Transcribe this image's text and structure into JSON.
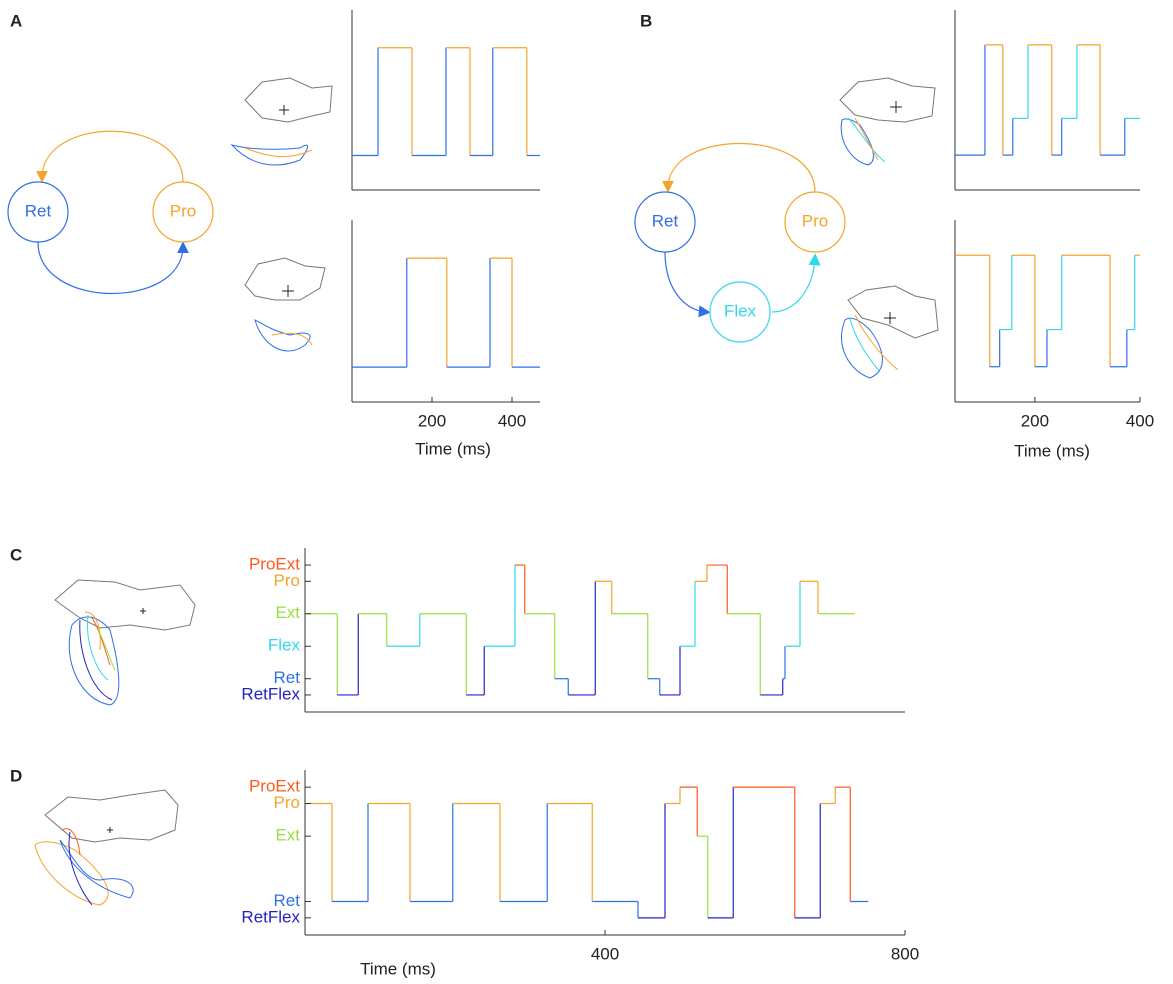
{
  "panels": [
    {
      "label": "A",
      "nodes": [
        {
          "label": "Ret",
          "color": "#2f6fe8"
        },
        {
          "label": "Pro",
          "color": "#f5a42a"
        }
      ],
      "level_colors": {
        "0": "#2f6fe8",
        "1": "#f5a42a"
      },
      "xlim": [
        0,
        470
      ],
      "ylim": [
        -0.32,
        1.35
      ],
      "xticks": [
        200,
        400
      ],
      "xlabel": "Time (ms)",
      "plots": [
        {
          "x": [
            0,
            65,
            150,
            235,
            295,
            352,
            437,
            470
          ],
          "values": [
            0,
            1,
            0,
            1,
            0,
            1,
            0,
            0
          ]
        },
        {
          "x": [
            0,
            137,
            237,
            345,
            400,
            470
          ],
          "values": [
            0,
            1,
            0,
            1,
            0,
            0
          ]
        }
      ]
    },
    {
      "label": "B",
      "nodes": [
        {
          "label": "Ret",
          "color": "#2f6fe8"
        },
        {
          "label": "Pro",
          "color": "#f5a42a"
        },
        {
          "label": "Flex",
          "color": "#30d8ee"
        }
      ],
      "level_colors": {
        "0": "#2f6fe8",
        "1": "#30d8ee",
        "3": "#f5a42a"
      },
      "xlim": [
        48,
        400
      ],
      "ylim": [
        -0.95,
        3.95
      ],
      "xticks": [
        200,
        400
      ],
      "xlabel": "Time (ms)",
      "plots": [
        {
          "x": [
            48,
            105,
            139,
            158,
            187,
            232,
            251,
            280,
            324,
            371,
            400
          ],
          "values": [
            0,
            3,
            0,
            1,
            3,
            0,
            1,
            3,
            0,
            1,
            1
          ]
        },
        {
          "x": [
            48,
            114,
            133,
            156,
            200,
            223,
            251,
            343,
            375,
            390,
            400
          ],
          "values": [
            3,
            0,
            1,
            3,
            0,
            1,
            3,
            0,
            1,
            3,
            3
          ]
        }
      ]
    },
    {
      "label": "C",
      "level_colors": {
        "0": "#2323c8",
        "1": "#2f6fe8",
        "3": "#30d8ee",
        "5": "#98e040",
        "7": "#f5a42a",
        "8": "#ff5a1a"
      },
      "ylabels": [
        {
          "value": 8,
          "label": "ProExt"
        },
        {
          "value": 7,
          "label": "Pro"
        },
        {
          "value": 5,
          "label": "Ext"
        },
        {
          "value": 3,
          "label": "Flex"
        },
        {
          "value": 1,
          "label": "Ret"
        },
        {
          "value": 0,
          "label": "RetFlex"
        }
      ],
      "xlim": [
        0,
        800
      ],
      "ylim": [
        -1.05,
        9.05
      ],
      "plots": [
        {
          "x": [
            0,
            43,
            71,
            109,
            153,
            215,
            239,
            280,
            293,
            333,
            351,
            387,
            409,
            457,
            473,
            500,
            520,
            536,
            563,
            607,
            637,
            640,
            660,
            684,
            733
          ],
          "values": [
            5,
            0,
            5,
            3,
            5,
            0,
            3,
            8,
            5,
            1,
            0,
            7,
            5,
            1,
            0,
            3,
            7,
            8,
            5,
            0,
            1,
            3,
            7,
            5,
            5
          ]
        }
      ]
    },
    {
      "label": "D",
      "level_colors": {
        "0": "#2323c8",
        "1": "#2f6fe8",
        "5": "#98e040",
        "7": "#f5a42a",
        "8": "#ff5a1a"
      },
      "ylabels": [
        {
          "value": 8,
          "label": "ProExt"
        },
        {
          "value": 7,
          "label": "Pro"
        },
        {
          "value": 5,
          "label": "Ext"
        },
        {
          "value": 1,
          "label": "Ret"
        },
        {
          "value": 0,
          "label": "RetFlex"
        }
      ],
      "xlim": [
        0,
        800
      ],
      "ylim": [
        -1.05,
        9.05
      ],
      "xticks": [
        400,
        800
      ],
      "xlabel": "Time (ms)",
      "plots": [
        {
          "x": [
            0,
            36,
            84,
            140,
            197,
            260,
            323,
            383,
            444,
            480,
            500,
            523,
            537,
            571,
            653,
            687,
            707,
            727,
            751
          ],
          "values": [
            7,
            1,
            7,
            1,
            7,
            1,
            7,
            1,
            0,
            7,
            8,
            5,
            0,
            8,
            0,
            7,
            8,
            1,
            1
          ]
        }
      ]
    }
  ]
}
